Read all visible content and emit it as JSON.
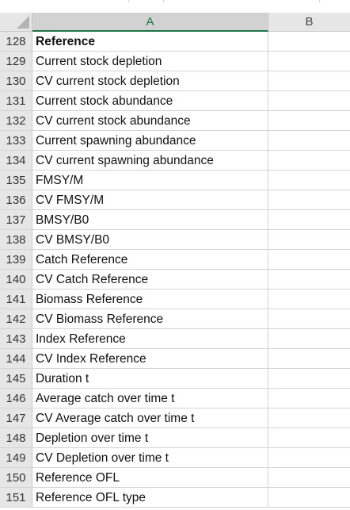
{
  "columns": {
    "a": "A",
    "b": "B"
  },
  "rows": [
    {
      "num": "128",
      "a": "Reference",
      "bold": true
    },
    {
      "num": "129",
      "a": "Current stock depletion"
    },
    {
      "num": "130",
      "a": "CV current stock depletion"
    },
    {
      "num": "131",
      "a": "Current stock abundance"
    },
    {
      "num": "132",
      "a": "CV current stock abundance"
    },
    {
      "num": "133",
      "a": "Current spawning abundance"
    },
    {
      "num": "134",
      "a": "CV current spawning abundance"
    },
    {
      "num": "135",
      "a": "FMSY/M"
    },
    {
      "num": "136",
      "a": "CV FMSY/M"
    },
    {
      "num": "137",
      "a": "BMSY/B0"
    },
    {
      "num": "138",
      "a": "CV BMSY/B0"
    },
    {
      "num": "139",
      "a": "Catch Reference"
    },
    {
      "num": "140",
      "a": "CV Catch Reference"
    },
    {
      "num": "141",
      "a": "Biomass Reference"
    },
    {
      "num": "142",
      "a": "CV Biomass Reference"
    },
    {
      "num": "143",
      "a": "Index Reference"
    },
    {
      "num": "144",
      "a": "CV Index Reference"
    },
    {
      "num": "145",
      "a": "Duration t"
    },
    {
      "num": "146",
      "a": "Average catch over time t"
    },
    {
      "num": "147",
      "a": "CV Average catch over time t"
    },
    {
      "num": "148",
      "a": "Depletion over time t"
    },
    {
      "num": "149",
      "a": "CV Depletion over time t"
    },
    {
      "num": "150",
      "a": "Reference OFL"
    },
    {
      "num": "151",
      "a": "Reference OFL type"
    }
  ]
}
